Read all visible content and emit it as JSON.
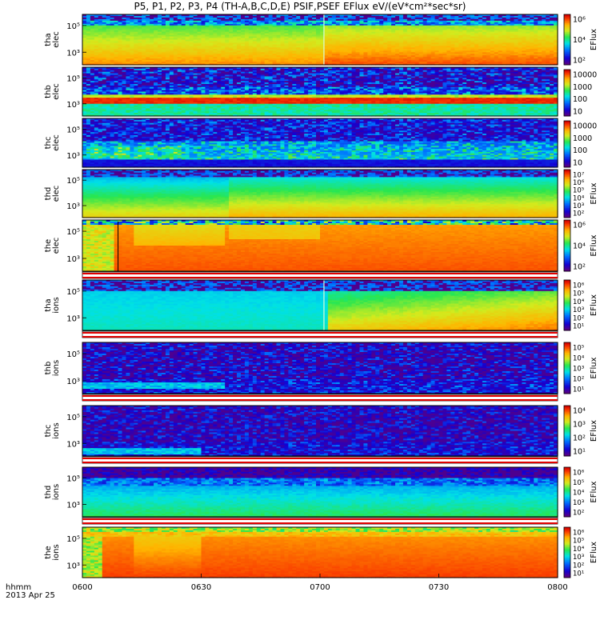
{
  "title": "P5, P1, P2, P3, P4 (TH-A,B,C,D,E) PSIF,PSEF EFlux eV/(eV*cm²*sec*sr)",
  "bottom_labels": {
    "line1": "hhmm",
    "line2": "2013 Apr 25"
  },
  "chart_data": {
    "type": "heatmap",
    "title": "P5, P1, P2, P3, P4 (TH-A,B,C,D,E) PSIF,PSEF EFlux eV/(eV*cm²*sec*sr)",
    "x_ticks": [
      "0600",
      "0630",
      "0700",
      "0730",
      "0800"
    ],
    "xlim": [
      "0600",
      "0800"
    ],
    "panels": [
      {
        "probe": "tha",
        "species": "elec",
        "y_ticks": [
          "10⁵",
          "10³"
        ],
        "cb_label": "EFlux",
        "cb_ticks": [
          "10⁶",
          "10⁴",
          "10²"
        ],
        "cb_top_gap": false,
        "preset": "tha_elec"
      },
      {
        "probe": "thb",
        "species": "elec",
        "y_ticks": [
          "10⁵",
          "10³"
        ],
        "cb_label": "",
        "cb_ticks": [
          "10000",
          "1000",
          "100",
          "10"
        ],
        "cb_top_gap": true,
        "preset": "thb_elec"
      },
      {
        "probe": "thc",
        "species": "elec",
        "y_ticks": [
          "10⁵",
          "10³"
        ],
        "cb_label": "",
        "cb_ticks": [
          "10000",
          "1000",
          "100",
          "10"
        ],
        "cb_top_gap": true,
        "preset": "thc_elec"
      },
      {
        "probe": "thd",
        "species": "elec",
        "y_ticks": [
          "10⁵",
          "10³"
        ],
        "cb_label": "EFlux",
        "cb_ticks": [
          "10⁷",
          "10⁶",
          "10⁵",
          "10⁴",
          "10³",
          "10²"
        ],
        "cb_top_gap": false,
        "preset": "thd_elec"
      },
      {
        "probe": "the",
        "species": "elec",
        "y_ticks": [
          "10⁵",
          "10³"
        ],
        "cb_label": "EFlux",
        "cb_ticks": [
          "10⁶",
          "10⁴",
          "10²"
        ],
        "cb_top_gap": false,
        "preset": "the_elec"
      },
      {
        "probe": "tha",
        "species": "ions",
        "y_ticks": [
          "10⁵",
          "10³"
        ],
        "cb_label": "EFlux",
        "cb_ticks": [
          "10⁶",
          "10⁵",
          "10⁴",
          "10³",
          "10²",
          "10¹"
        ],
        "cb_top_gap": false,
        "preset": "tha_ions"
      },
      {
        "probe": "thb",
        "species": "ions",
        "y_ticks": [
          "10⁵",
          "10³"
        ],
        "cb_label": "EFlux",
        "cb_ticks": [
          "10⁵",
          "10⁴",
          "10³",
          "10²",
          "10¹"
        ],
        "cb_top_gap": false,
        "preset": "thb_ions"
      },
      {
        "probe": "thc",
        "species": "ions",
        "y_ticks": [
          "10⁵",
          "10³"
        ],
        "cb_label": "EFlux",
        "cb_ticks": [
          "10⁴",
          "10³",
          "10²",
          "10¹"
        ],
        "cb_top_gap": false,
        "preset": "thc_ions"
      },
      {
        "probe": "thd",
        "species": "ions",
        "y_ticks": [
          "10⁵",
          "10³"
        ],
        "cb_label": "EFlux",
        "cb_ticks": [
          "10⁶",
          "10⁵",
          "10⁴",
          "10³",
          "10²"
        ],
        "cb_top_gap": false,
        "preset": "thd_ions"
      },
      {
        "probe": "the",
        "species": "ions",
        "y_ticks": [
          "10⁵",
          "10³"
        ],
        "cb_label": "EFlux",
        "cb_ticks": [
          "10⁶",
          "10⁵",
          "10⁴",
          "10³",
          "10²",
          "10¹"
        ],
        "cb_top_gap": false,
        "preset": "the_ions"
      }
    ]
  }
}
